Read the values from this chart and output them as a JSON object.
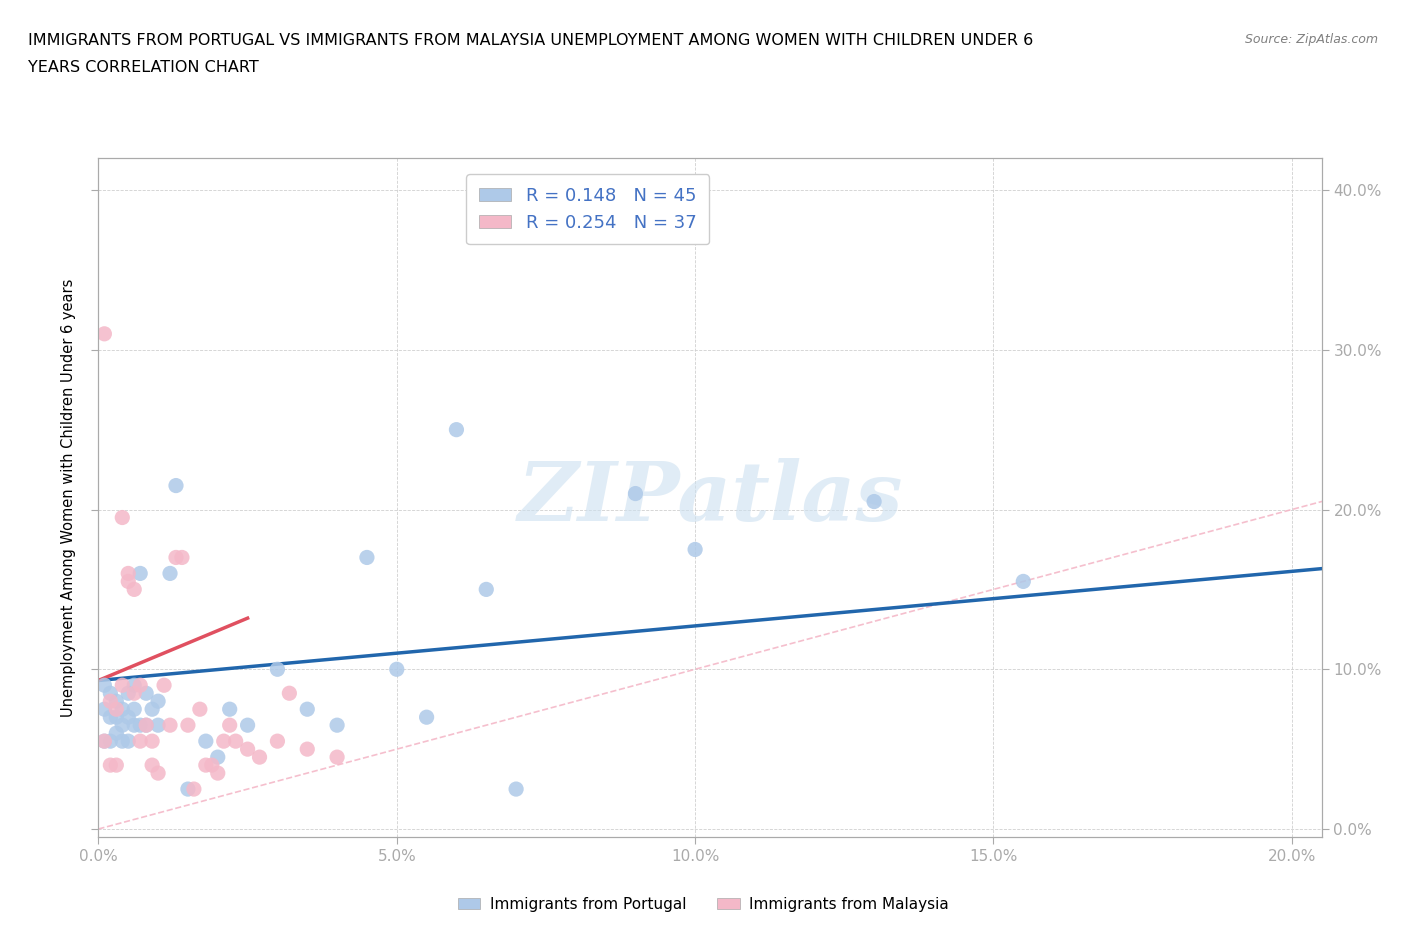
{
  "title_line1": "IMMIGRANTS FROM PORTUGAL VS IMMIGRANTS FROM MALAYSIA UNEMPLOYMENT AMONG WOMEN WITH CHILDREN UNDER 6",
  "title_line2": "YEARS CORRELATION CHART",
  "source": "Source: ZipAtlas.com",
  "ylabel": "Unemployment Among Women with Children Under 6 years",
  "xlim": [
    0.0,
    0.205
  ],
  "ylim": [
    -0.005,
    0.42
  ],
  "x_ticks": [
    0.0,
    0.05,
    0.1,
    0.15,
    0.2
  ],
  "x_tick_labels": [
    "0.0%",
    "5.0%",
    "10.0%",
    "15.0%",
    "20.0%"
  ],
  "y_ticks_right": [
    0.0,
    0.1,
    0.2,
    0.3,
    0.4
  ],
  "y_tick_labels_right": [
    "0.0%",
    "10.0%",
    "20.0%",
    "30.0%",
    "40.0%"
  ],
  "R_portugal": 0.148,
  "N_portugal": 45,
  "R_malaysia": 0.254,
  "N_malaysia": 37,
  "color_portugal": "#aec9e8",
  "color_malaysia": "#f4b8c8",
  "color_trend_portugal": "#2166ac",
  "color_trend_malaysia": "#e05060",
  "color_diagonal": "#f4b8c8",
  "background_color": "#ffffff",
  "watermark_text": "ZIPatlas",
  "legend_color": "#4472c4",
  "portugal_x": [
    0.001,
    0.001,
    0.001,
    0.002,
    0.002,
    0.002,
    0.003,
    0.003,
    0.003,
    0.004,
    0.004,
    0.004,
    0.005,
    0.005,
    0.005,
    0.006,
    0.006,
    0.006,
    0.007,
    0.007,
    0.008,
    0.008,
    0.009,
    0.01,
    0.01,
    0.012,
    0.013,
    0.015,
    0.018,
    0.02,
    0.022,
    0.025,
    0.03,
    0.035,
    0.04,
    0.045,
    0.05,
    0.055,
    0.06,
    0.065,
    0.07,
    0.09,
    0.1,
    0.13,
    0.155
  ],
  "portugal_y": [
    0.09,
    0.075,
    0.055,
    0.085,
    0.07,
    0.055,
    0.08,
    0.07,
    0.06,
    0.075,
    0.065,
    0.055,
    0.085,
    0.07,
    0.055,
    0.09,
    0.075,
    0.065,
    0.16,
    0.065,
    0.085,
    0.065,
    0.075,
    0.065,
    0.08,
    0.16,
    0.215,
    0.025,
    0.055,
    0.045,
    0.075,
    0.065,
    0.1,
    0.075,
    0.065,
    0.17,
    0.1,
    0.07,
    0.25,
    0.15,
    0.025,
    0.21,
    0.175,
    0.205,
    0.155
  ],
  "malaysia_x": [
    0.001,
    0.001,
    0.002,
    0.002,
    0.003,
    0.003,
    0.004,
    0.004,
    0.005,
    0.005,
    0.006,
    0.006,
    0.007,
    0.007,
    0.008,
    0.009,
    0.009,
    0.01,
    0.011,
    0.012,
    0.013,
    0.014,
    0.015,
    0.016,
    0.017,
    0.018,
    0.019,
    0.02,
    0.021,
    0.022,
    0.023,
    0.025,
    0.027,
    0.03,
    0.032,
    0.035,
    0.04
  ],
  "malaysia_y": [
    0.31,
    0.055,
    0.08,
    0.04,
    0.075,
    0.04,
    0.195,
    0.09,
    0.16,
    0.155,
    0.085,
    0.15,
    0.09,
    0.055,
    0.065,
    0.055,
    0.04,
    0.035,
    0.09,
    0.065,
    0.17,
    0.17,
    0.065,
    0.025,
    0.075,
    0.04,
    0.04,
    0.035,
    0.055,
    0.065,
    0.055,
    0.05,
    0.045,
    0.055,
    0.085,
    0.05,
    0.045
  ],
  "portugal_trend_x0": 0.0,
  "portugal_trend_x1": 0.205,
  "portugal_trend_y0": 0.093,
  "portugal_trend_y1": 0.163,
  "malaysia_trend_x0": 0.0,
  "malaysia_trend_x1": 0.025,
  "malaysia_trend_y0": 0.093,
  "malaysia_trend_y1": 0.132
}
